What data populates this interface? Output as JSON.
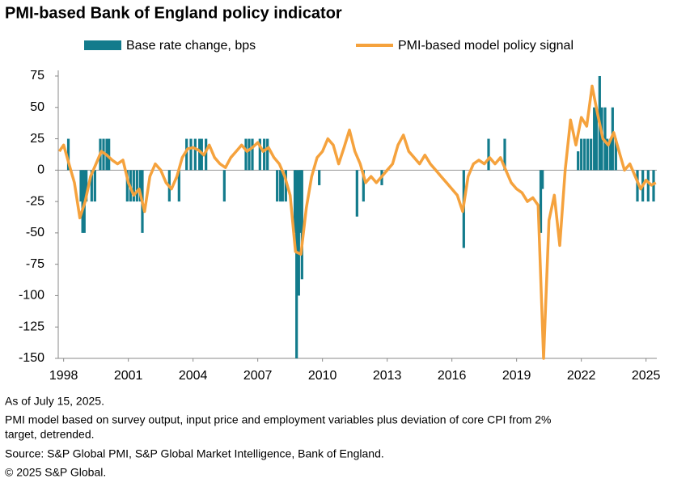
{
  "chart_data": {
    "type": "bar-line",
    "title": "PMI-based Bank of England policy indicator",
    "notes": [
      "As of July 15, 2025.",
      "PMI model based on survey output, input price and employment variables plus deviation of core CPI from 2%",
      "target, detrended.",
      "Source: S&P Global PMI, S&P Global Market Intelligence, Bank of England.",
      "© 2025 S&P Global."
    ],
    "xlim": [
      1997.75,
      2025.5
    ],
    "xticks": [
      1998,
      2001,
      2004,
      2007,
      2010,
      2013,
      2016,
      2019,
      2022,
      2025
    ],
    "ylim": [
      -150,
      79.5
    ],
    "yticks": [
      75,
      50,
      25,
      0,
      -25,
      -50,
      -75,
      -100,
      -125,
      -150
    ],
    "grid": false,
    "legend": "top",
    "series": [
      {
        "name": "Base rate change, bps",
        "type": "bar",
        "color": "#137b8c",
        "x": [
          1998.22,
          1998.8,
          1998.88,
          1998.96,
          1999.05,
          1999.3,
          1999.45,
          1999.7,
          1999.85,
          2000.0,
          2000.1,
          2000.95,
          2001.1,
          2001.25,
          2001.4,
          2001.55,
          2001.65,
          2002.9,
          2003.35,
          2003.7,
          2003.9,
          2004.1,
          2004.3,
          2004.4,
          2004.6,
          2005.45,
          2006.45,
          2006.6,
          2006.75,
          2007.1,
          2007.3,
          2007.45,
          2007.9,
          2008.05,
          2008.15,
          2008.3,
          2008.72,
          2008.8,
          2008.9,
          2008.98,
          2009.05,
          2009.85,
          2011.6,
          2011.9,
          2012.75,
          2016.55,
          2017.7,
          2018.45,
          2020.12,
          2020.2,
          2021.85,
          2022.0,
          2022.15,
          2022.3,
          2022.45,
          2022.6,
          2022.7,
          2022.85,
          2022.95,
          2023.1,
          2023.2,
          2023.35,
          2023.45,
          2023.6,
          2024.6,
          2024.85,
          2025.1,
          2025.35
        ],
        "values": [
          25,
          -25,
          -50,
          -50,
          -25,
          -25,
          -25,
          25,
          25,
          25,
          25,
          -25,
          -25,
          -25,
          -25,
          -25,
          -50,
          -25,
          -25,
          25,
          25,
          25,
          25,
          25,
          25,
          -25,
          25,
          25,
          25,
          25,
          25,
          25,
          -25,
          -25,
          -25,
          -25,
          -50,
          -150,
          -100,
          -50,
          -87,
          -12,
          -37,
          -25,
          -12,
          -62,
          25,
          25,
          -50,
          -15,
          15,
          25,
          25,
          25,
          25,
          50,
          50,
          75,
          50,
          50,
          25,
          25,
          50,
          25,
          -25,
          -25,
          -25,
          -25
        ]
      },
      {
        "name": "PMI-based model policy signal",
        "type": "line",
        "color": "#f5a23d",
        "x": [
          1997.8,
          1998.0,
          1998.25,
          1998.5,
          1998.75,
          1999.0,
          1999.25,
          1999.5,
          1999.75,
          2000.0,
          2000.25,
          2000.5,
          2000.75,
          2001.0,
          2001.25,
          2001.5,
          2001.75,
          2002.0,
          2002.25,
          2002.5,
          2002.75,
          2003.0,
          2003.25,
          2003.5,
          2003.75,
          2004.0,
          2004.25,
          2004.5,
          2004.75,
          2005.0,
          2005.25,
          2005.5,
          2005.75,
          2006.0,
          2006.25,
          2006.5,
          2006.75,
          2007.0,
          2007.25,
          2007.5,
          2007.75,
          2008.0,
          2008.25,
          2008.5,
          2008.75,
          2009.0,
          2009.25,
          2009.5,
          2009.75,
          2010.0,
          2010.25,
          2010.5,
          2010.75,
          2011.0,
          2011.25,
          2011.5,
          2011.75,
          2012.0,
          2012.25,
          2012.5,
          2012.75,
          2013.0,
          2013.25,
          2013.5,
          2013.75,
          2014.0,
          2014.25,
          2014.5,
          2014.75,
          2015.0,
          2015.25,
          2015.5,
          2015.75,
          2016.0,
          2016.25,
          2016.5,
          2016.75,
          2017.0,
          2017.25,
          2017.5,
          2017.75,
          2018.0,
          2018.25,
          2018.5,
          2018.75,
          2019.0,
          2019.25,
          2019.5,
          2019.75,
          2020.0,
          2020.25,
          2020.5,
          2020.75,
          2021.0,
          2021.25,
          2021.5,
          2021.75,
          2022.0,
          2022.25,
          2022.5,
          2022.75,
          2023.0,
          2023.25,
          2023.5,
          2023.75,
          2024.0,
          2024.25,
          2024.5,
          2024.75,
          2025.0,
          2025.25,
          2025.45
        ],
        "values": [
          15,
          20,
          5,
          -10,
          -38,
          -25,
          -5,
          5,
          15,
          12,
          8,
          5,
          8,
          -10,
          -20,
          -15,
          -33,
          -5,
          5,
          0,
          -10,
          -15,
          -5,
          10,
          17,
          18,
          16,
          12,
          20,
          10,
          5,
          2,
          10,
          15,
          20,
          15,
          18,
          22,
          15,
          18,
          10,
          5,
          -5,
          -20,
          -65,
          -67,
          -30,
          -5,
          10,
          15,
          25,
          20,
          5,
          18,
          32,
          15,
          5,
          -10,
          -5,
          -10,
          -5,
          0,
          5,
          20,
          28,
          15,
          10,
          5,
          12,
          5,
          0,
          -5,
          -10,
          -15,
          -20,
          -33,
          -5,
          5,
          8,
          5,
          10,
          5,
          10,
          0,
          -10,
          -15,
          -18,
          -25,
          -22,
          -28,
          -150,
          -40,
          -20,
          -60,
          0,
          40,
          20,
          42,
          35,
          67,
          45,
          25,
          20,
          30,
          15,
          0,
          5,
          -5,
          -15,
          -8,
          -12,
          -10
        ]
      }
    ]
  }
}
